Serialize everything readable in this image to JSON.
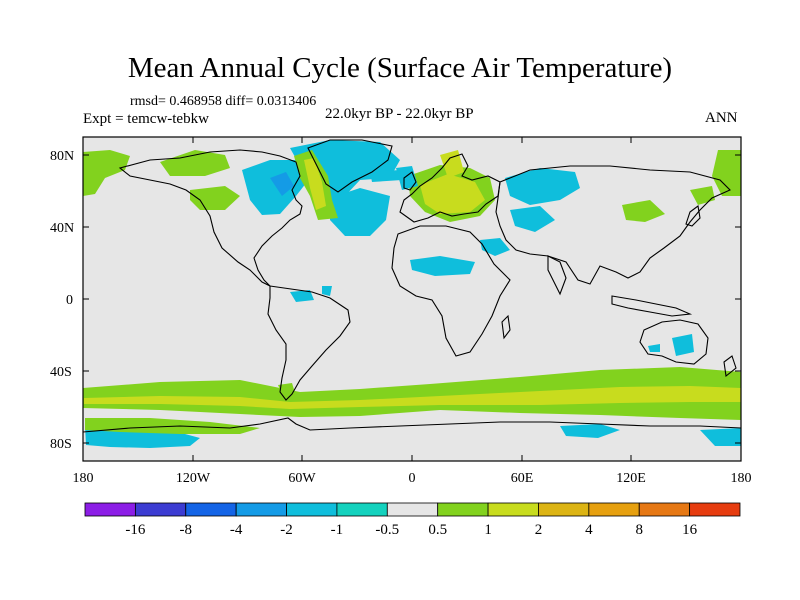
{
  "header": {
    "title": "Mean Annual Cycle (Surface Air Temperature)",
    "stats": "rmsd= 0.468958 diff= 0.0313406",
    "experiment": "Expt = temcw-tebkw",
    "period": "22.0kyr BP - 22.0kyr BP",
    "season": "ANN"
  },
  "axes": {
    "lat_labels": [
      "80N",
      "40N",
      "0",
      "40S",
      "80S"
    ],
    "lat_values": [
      80,
      40,
      0,
      -40,
      -80
    ],
    "lon_labels": [
      "180",
      "120W",
      "60W",
      "0",
      "60E",
      "120E",
      "180"
    ],
    "lon_values": [
      -180,
      -120,
      -60,
      0,
      60,
      120,
      180
    ],
    "lat_range": [
      -90,
      90
    ],
    "lon_range": [
      -180,
      180
    ]
  },
  "colorbar": {
    "colors": [
      "#8c1ee6",
      "#3c3cd2",
      "#1464e6",
      "#149be6",
      "#0fbedc",
      "#14d2be",
      "#e6e6e6",
      "#82d21e",
      "#c8dc1e",
      "#dcb414",
      "#e6a00f",
      "#e67814",
      "#e63c0f"
    ],
    "labels": [
      "-16",
      "-8",
      "-4",
      "-2",
      "-1",
      "-0.5",
      "0.5",
      "1",
      "2",
      "4",
      "8",
      "16"
    ]
  },
  "colors": {
    "background": "#e6e6e6",
    "coast": "#000000"
  }
}
